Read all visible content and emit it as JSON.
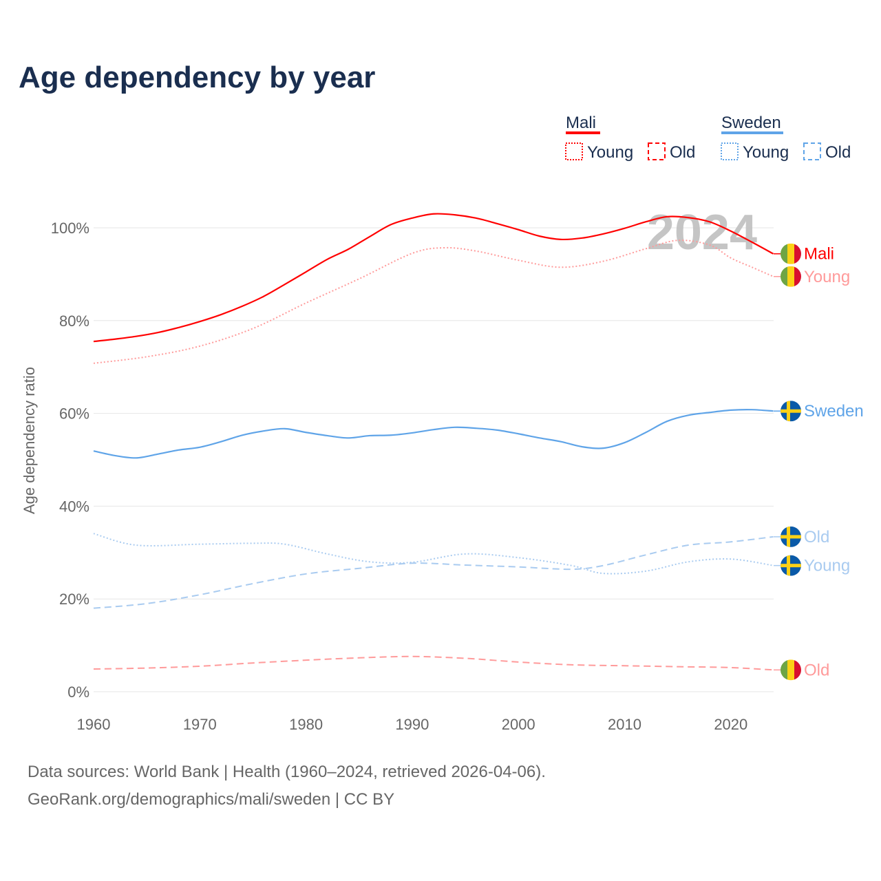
{
  "title": "Age dependency by year",
  "footer": {
    "line1": "Data sources: World Bank | Health (1960–2024, retrieved 2026-04-06).",
    "line2": "GeoRank.org/demographics/mali/sweden | CC BY"
  },
  "legend": {
    "groups": [
      {
        "name": "Mali",
        "color": "#ff0000",
        "items": [
          "Young",
          "Old"
        ]
      },
      {
        "name": "Sweden",
        "color": "#5fa4e8",
        "items": [
          "Young",
          "Old"
        ]
      }
    ]
  },
  "chart_data": {
    "type": "line",
    "title": "Age dependency by year",
    "xlabel": "",
    "ylabel": "Age dependency ratio",
    "xlim": [
      1960,
      2024
    ],
    "ylim": [
      0,
      110
    ],
    "xticks": [
      1960,
      1970,
      1980,
      1990,
      2000,
      2010,
      2020
    ],
    "yticks": [
      0,
      20,
      40,
      60,
      80,
      100
    ],
    "ytick_labels": [
      "0%",
      "20%",
      "40%",
      "60%",
      "80%",
      "100%"
    ],
    "year_label": "2024",
    "series": [
      {
        "name": "Mali",
        "label": "Mali",
        "flag": "mali",
        "color": "#ff0000",
        "dash": "solid",
        "x": [
          1960,
          1962,
          1964,
          1966,
          1968,
          1970,
          1972,
          1974,
          1976,
          1978,
          1980,
          1982,
          1984,
          1986,
          1988,
          1990,
          1992,
          1994,
          1996,
          1998,
          2000,
          2002,
          2004,
          2006,
          2008,
          2010,
          2012,
          2014,
          2016,
          2018,
          2020,
          2022,
          2024
        ],
        "y": [
          75.5,
          76.0,
          76.6,
          77.4,
          78.5,
          79.8,
          81.3,
          83.1,
          85.2,
          87.8,
          90.5,
          93.2,
          95.4,
          98.1,
          100.7,
          102.1,
          103.0,
          102.8,
          102.1,
          100.9,
          99.6,
          98.2,
          97.5,
          97.8,
          98.7,
          99.9,
          101.3,
          102.4,
          102.2,
          101.3,
          99.3,
          96.9,
          94.4
        ]
      },
      {
        "name": "Mali Young",
        "label": "Young",
        "flag": "mali",
        "color": "#ff9a9a",
        "dash": "dotted",
        "x": [
          1960,
          1965,
          1970,
          1975,
          1980,
          1985,
          1990,
          1993,
          1996,
          2000,
          2004,
          2008,
          2012,
          2015,
          2018,
          2020,
          2022,
          2024
        ],
        "y": [
          70.8,
          72.2,
          74.5,
          78.3,
          83.8,
          89.0,
          94.5,
          95.7,
          95.0,
          93.0,
          91.5,
          92.8,
          95.5,
          97.3,
          96.3,
          93.5,
          91.5,
          89.5
        ]
      },
      {
        "name": "Mali Old",
        "label": "Old",
        "flag": "mali",
        "color": "#ff9a9a",
        "dash": "dashed",
        "x": [
          1960,
          1965,
          1970,
          1975,
          1980,
          1985,
          1990,
          1995,
          2000,
          2005,
          2010,
          2015,
          2020,
          2024
        ],
        "y": [
          4.9,
          5.1,
          5.5,
          6.2,
          6.8,
          7.3,
          7.6,
          7.2,
          6.4,
          5.8,
          5.6,
          5.4,
          5.2,
          4.7
        ]
      },
      {
        "name": "Sweden",
        "label": "Sweden",
        "flag": "sweden",
        "color": "#5fa4e8",
        "dash": "solid",
        "x": [
          1960,
          1962,
          1964,
          1966,
          1968,
          1970,
          1972,
          1974,
          1976,
          1978,
          1980,
          1982,
          1984,
          1986,
          1988,
          1990,
          1992,
          1994,
          1996,
          1998,
          2000,
          2002,
          2004,
          2006,
          2008,
          2010,
          2012,
          2014,
          2016,
          2018,
          2020,
          2022,
          2024
        ],
        "y": [
          51.9,
          50.9,
          50.4,
          51.2,
          52.1,
          52.7,
          53.9,
          55.3,
          56.2,
          56.7,
          55.9,
          55.2,
          54.7,
          55.2,
          55.3,
          55.8,
          56.5,
          57.0,
          56.8,
          56.4,
          55.6,
          54.7,
          53.9,
          52.8,
          52.5,
          53.7,
          55.9,
          58.3,
          59.6,
          60.2,
          60.7,
          60.8,
          60.5
        ]
      },
      {
        "name": "Sweden Old",
        "label": "Old",
        "flag": "sweden",
        "color": "#a9cbf0",
        "dash": "dashed",
        "x": [
          1960,
          1965,
          1970,
          1975,
          1980,
          1985,
          1990,
          1995,
          2000,
          2005,
          2008,
          2012,
          2016,
          2020,
          2024
        ],
        "y": [
          18.0,
          19.0,
          20.9,
          23.3,
          25.4,
          26.6,
          27.7,
          27.3,
          26.9,
          26.4,
          27.2,
          29.5,
          31.6,
          32.3,
          33.4
        ]
      },
      {
        "name": "Sweden Young",
        "label": "Young",
        "flag": "sweden",
        "color": "#a9cbf0",
        "dash": "dotted",
        "x": [
          1960,
          1964,
          1970,
          1975,
          1978,
          1982,
          1986,
          1990,
          1995,
          2000,
          2005,
          2008,
          2012,
          2016,
          2020,
          2024
        ],
        "y": [
          34.1,
          31.6,
          31.8,
          32.0,
          31.8,
          29.7,
          28.0,
          27.9,
          29.7,
          28.9,
          27.2,
          25.5,
          26.0,
          28.0,
          28.6,
          27.2
        ]
      }
    ]
  }
}
